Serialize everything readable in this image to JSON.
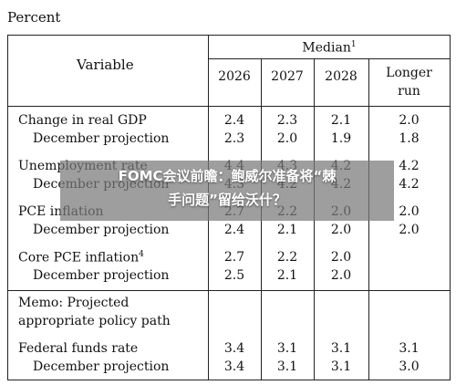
{
  "percent_label": "Percent",
  "header": {
    "variable": "Variable",
    "median": "Median",
    "median_sup": "1",
    "years": [
      "2026",
      "2027",
      "2028"
    ],
    "longer_run_line1": "Longer",
    "longer_run_line2": "run"
  },
  "rows": [
    {
      "label": "Change in real GDP",
      "values": [
        "2.4",
        "2.3",
        "2.1",
        "2.0"
      ]
    },
    {
      "label": "December projection",
      "values": [
        "2.3",
        "2.0",
        "1.9",
        "1.8"
      ]
    },
    {
      "label": "Unemployment rate",
      "values": [
        "4.4",
        "4.3",
        "4.2",
        "4.2"
      ]
    },
    {
      "label": "December projection",
      "values": [
        "4.3",
        "4.2",
        "4.2",
        "4.2"
      ]
    },
    {
      "label": "PCE inflation",
      "values": [
        "2.7",
        "2.2",
        "2.0",
        "2.0"
      ]
    },
    {
      "label": "December projection",
      "values": [
        "2.4",
        "2.1",
        "2.0",
        "2.0"
      ]
    },
    {
      "label": "Core PCE inflation",
      "sup": "4",
      "values": [
        "2.7",
        "2.2",
        "2.0",
        ""
      ]
    },
    {
      "label": "December projection",
      "values": [
        "2.5",
        "2.1",
        "2.0",
        ""
      ]
    }
  ],
  "memo": {
    "line1": "Memo: Projected",
    "line2": "appropriate policy path"
  },
  "fed_rows": [
    {
      "label": "Federal funds rate",
      "values": [
        "3.4",
        "3.1",
        "3.1",
        "3.1"
      ]
    },
    {
      "label": "December projection",
      "values": [
        "3.4",
        "3.1",
        "3.1",
        "3.0"
      ]
    }
  ],
  "overlay": {
    "line1": "FOMC会议前瞻：鲍威尔准备将“棘",
    "line2": "手问题”留给沃什？"
  }
}
